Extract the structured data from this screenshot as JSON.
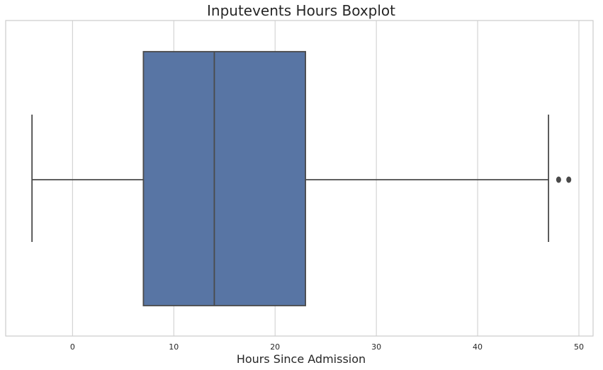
{
  "chart_data": {
    "type": "boxplot",
    "title": "Inputevents Hours Boxplot",
    "xlabel": "Hours Since Admission",
    "ylabel": "",
    "orientation": "horizontal",
    "xlim": [
      -6.6,
      51.4
    ],
    "xticks": [
      0,
      10,
      20,
      30,
      40,
      50
    ],
    "grid": true,
    "box": {
      "whisker_low": -4,
      "q1": 7,
      "median": 14,
      "q3": 23,
      "whisker_high": 47,
      "outliers": [
        48,
        49
      ],
      "color": "#5875a4",
      "line_color": "#4a4a4a"
    }
  }
}
